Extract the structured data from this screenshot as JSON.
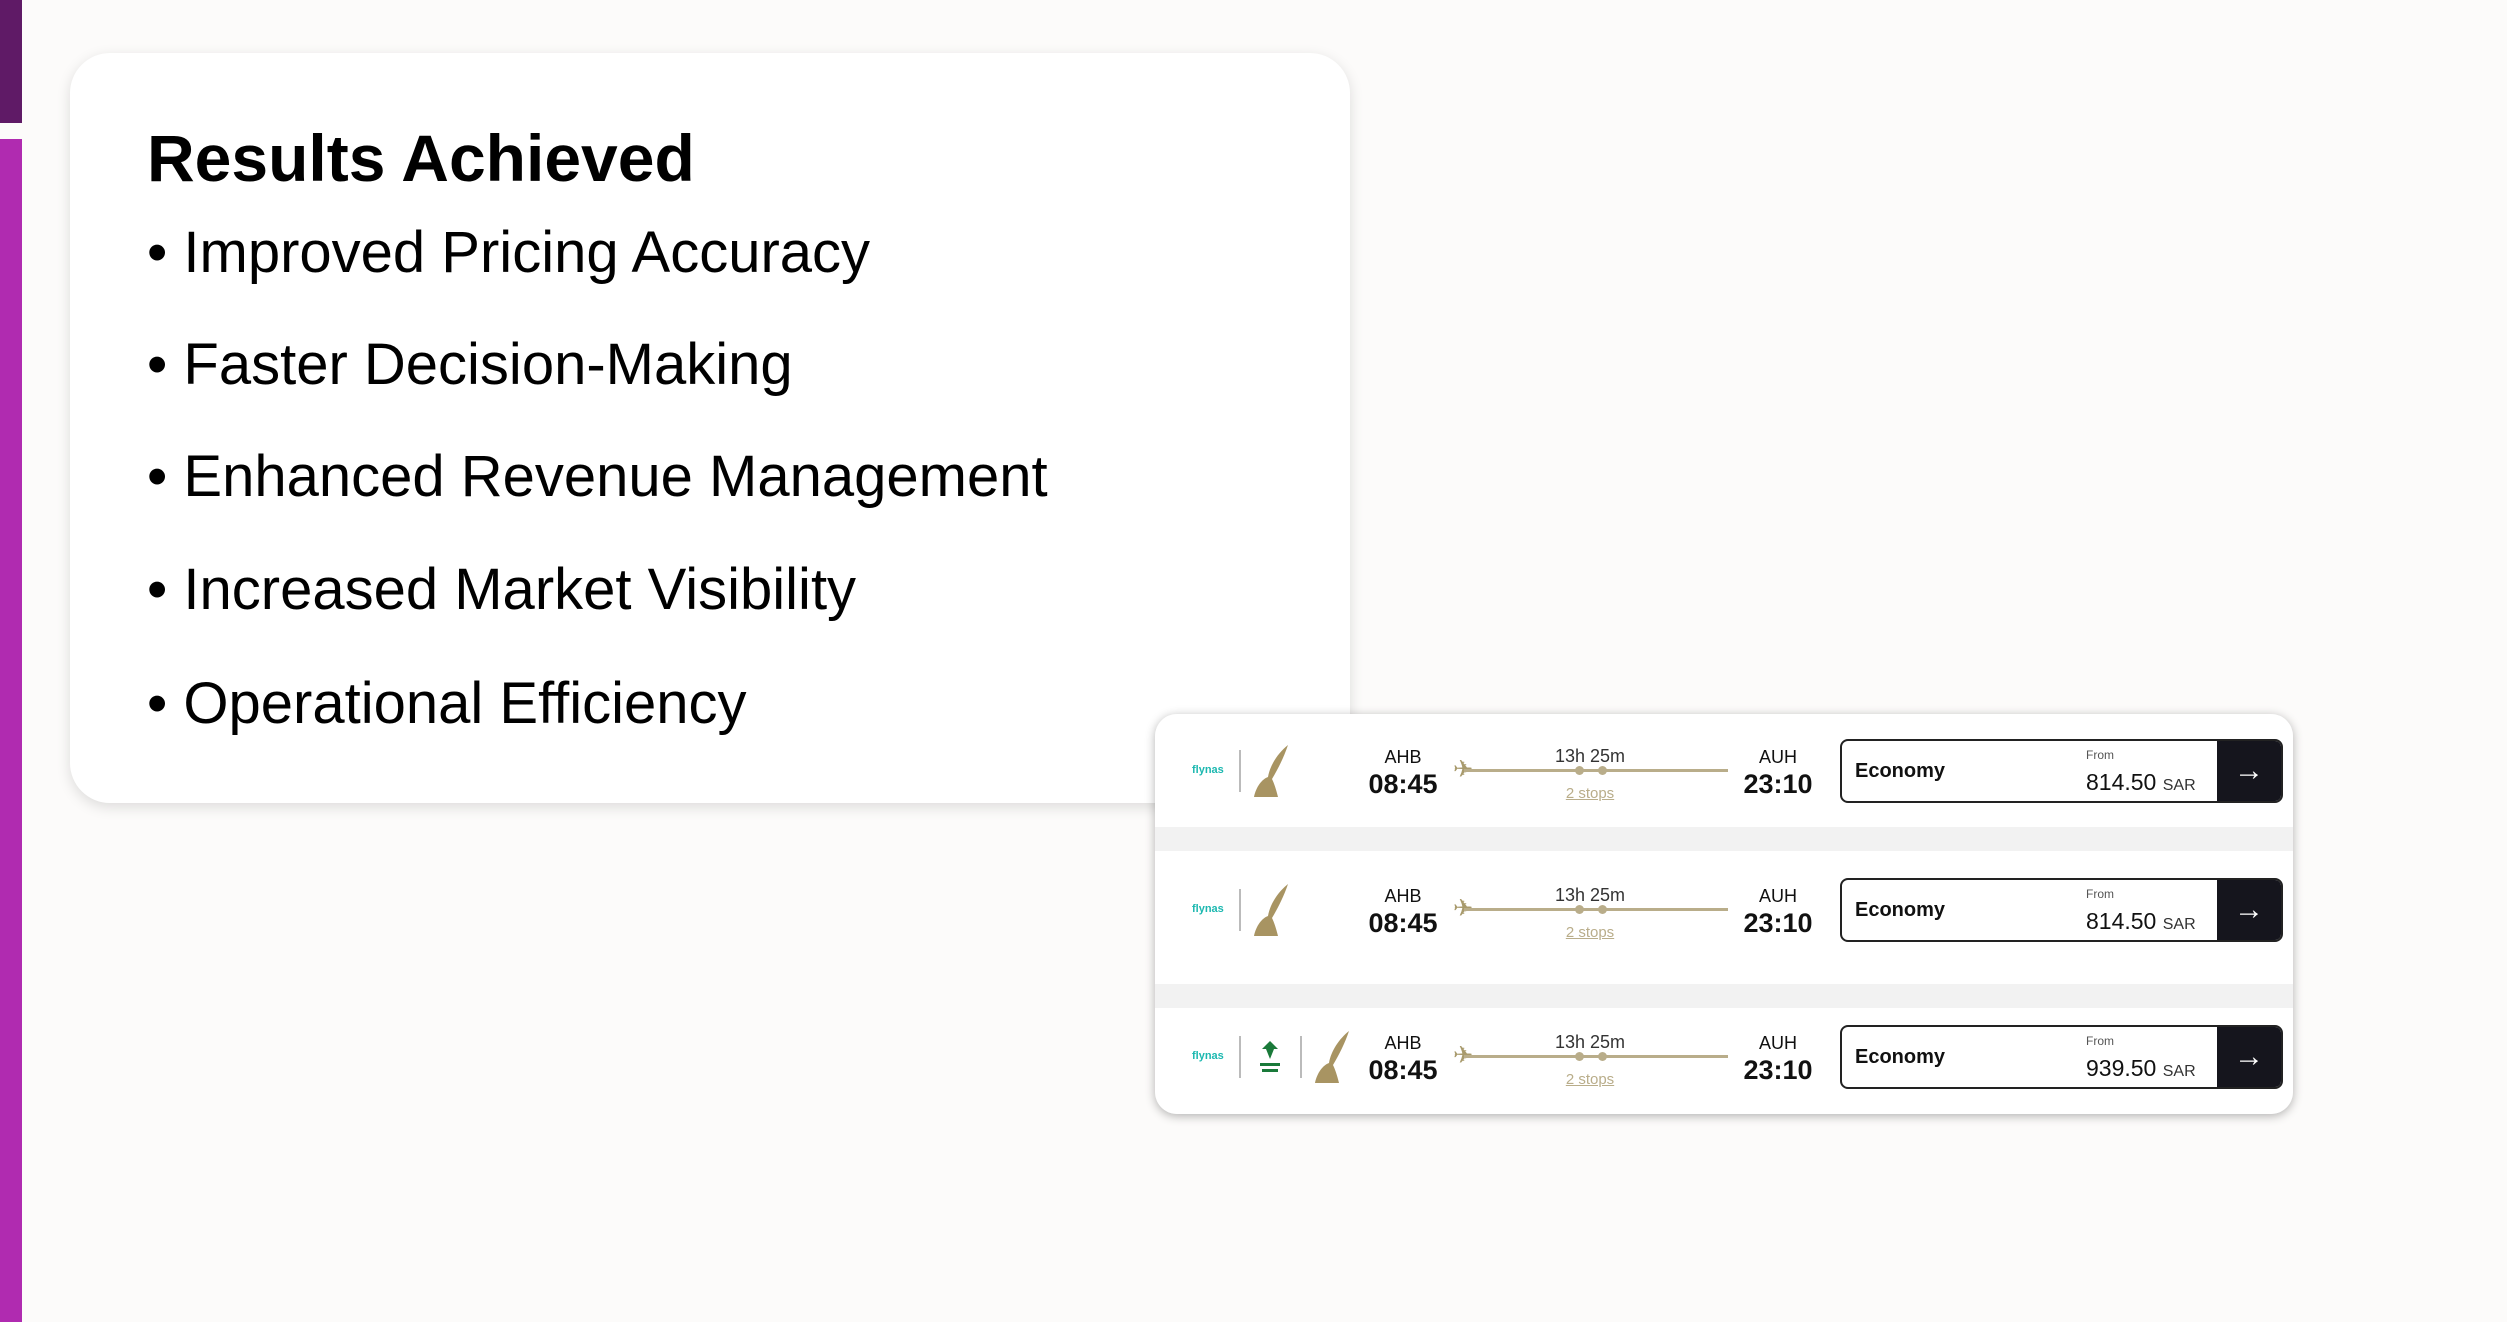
{
  "accent_colors": {
    "bar_dark": "#5f1a66",
    "bar_light": "#b02bb0"
  },
  "card": {
    "title": "Results Achieved",
    "bullets": [
      "• Improved Pricing Accuracy",
      "• Faster Decision-Making",
      "• Enhanced Revenue Management",
      "• Increased Market Visibility",
      "• Operational Efficiency"
    ]
  },
  "flights": [
    {
      "airline_logos": [
        "flynas",
        "gulf-air-falcon"
      ],
      "origin": "AHB",
      "depart": "08:45",
      "duration": "13h 25m",
      "stops": "2 stops",
      "destination": "AUH",
      "arrive": "23:10",
      "cabin": "Economy",
      "from_label": "From",
      "price": "814.50",
      "currency": "SAR"
    },
    {
      "airline_logos": [
        "flynas",
        "gulf-air-falcon"
      ],
      "origin": "AHB",
      "depart": "08:45",
      "duration": "13h 25m",
      "stops": "2 stops",
      "destination": "AUH",
      "arrive": "23:10",
      "cabin": "Economy",
      "from_label": "From",
      "price": "814.50",
      "currency": "SAR"
    },
    {
      "airline_logos": [
        "flynas",
        "saudia",
        "gulf-air-falcon"
      ],
      "origin": "AHB",
      "depart": "08:45",
      "duration": "13h 25m",
      "stops": "2 stops",
      "destination": "AUH",
      "arrive": "23:10",
      "cabin": "Economy",
      "from_label": "From",
      "price": "939.50",
      "currency": "SAR"
    }
  ],
  "logo_text": {
    "flynas": "flynas"
  }
}
